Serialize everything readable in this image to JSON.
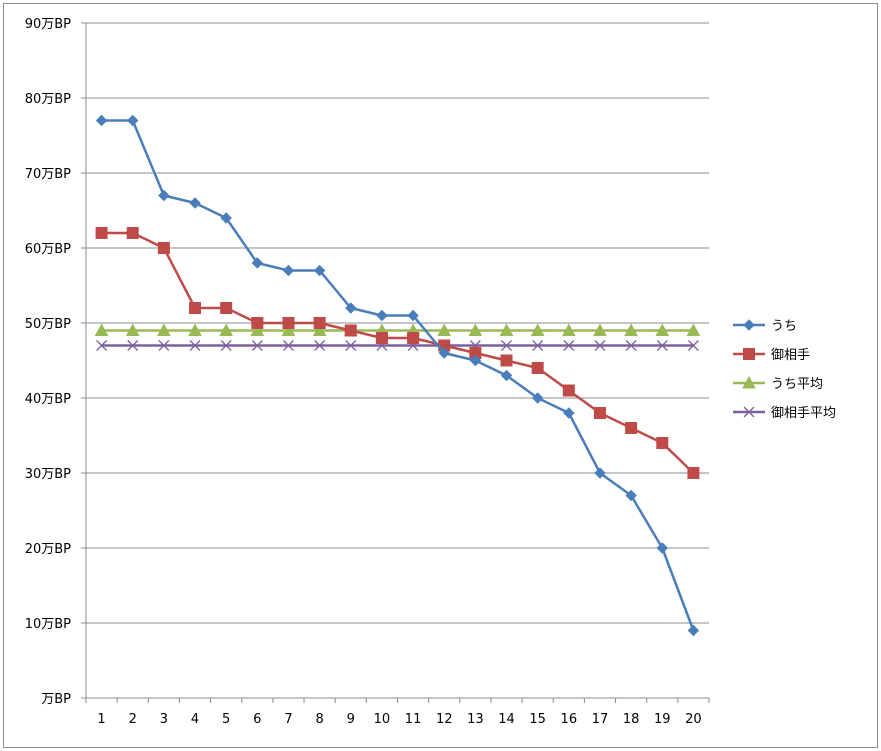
{
  "chart_data": {
    "type": "line",
    "categories": [
      "1",
      "2",
      "3",
      "4",
      "5",
      "6",
      "7",
      "8",
      "9",
      "10",
      "11",
      "12",
      "13",
      "14",
      "15",
      "16",
      "17",
      "18",
      "19",
      "20"
    ],
    "ylim": [
      0,
      90
    ],
    "y_tick_labels": [
      "万BP",
      "10万BP",
      "20万BP",
      "30万BP",
      "40万BP",
      "50万BP",
      "60万BP",
      "70万BP",
      "80万BP",
      "90万BP"
    ],
    "grid": true,
    "legend_position": "right",
    "series": [
      {
        "name": "うち",
        "color": "#4a7ebb",
        "marker": "diamond",
        "values": [
          77,
          77,
          67,
          66,
          64,
          58,
          57,
          57,
          52,
          51,
          51,
          46,
          45,
          43,
          40,
          38,
          30,
          27,
          20,
          9
        ]
      },
      {
        "name": "御相手",
        "color": "#be4b48",
        "marker": "square",
        "values": [
          62,
          62,
          60,
          52,
          52,
          50,
          50,
          50,
          49,
          48,
          48,
          47,
          46,
          45,
          44,
          41,
          38,
          36,
          34,
          30
        ]
      },
      {
        "name": "うち平均",
        "color": "#98b954",
        "marker": "triangle",
        "values": [
          49,
          49,
          49,
          49,
          49,
          49,
          49,
          49,
          49,
          49,
          49,
          49,
          49,
          49,
          49,
          49,
          49,
          49,
          49,
          49
        ]
      },
      {
        "name": "御相手平均",
        "color": "#7d60a0",
        "marker": "x",
        "values": [
          47,
          47,
          47,
          47,
          47,
          47,
          47,
          47,
          47,
          47,
          47,
          47,
          47,
          47,
          47,
          47,
          47,
          47,
          47,
          47
        ]
      }
    ]
  }
}
